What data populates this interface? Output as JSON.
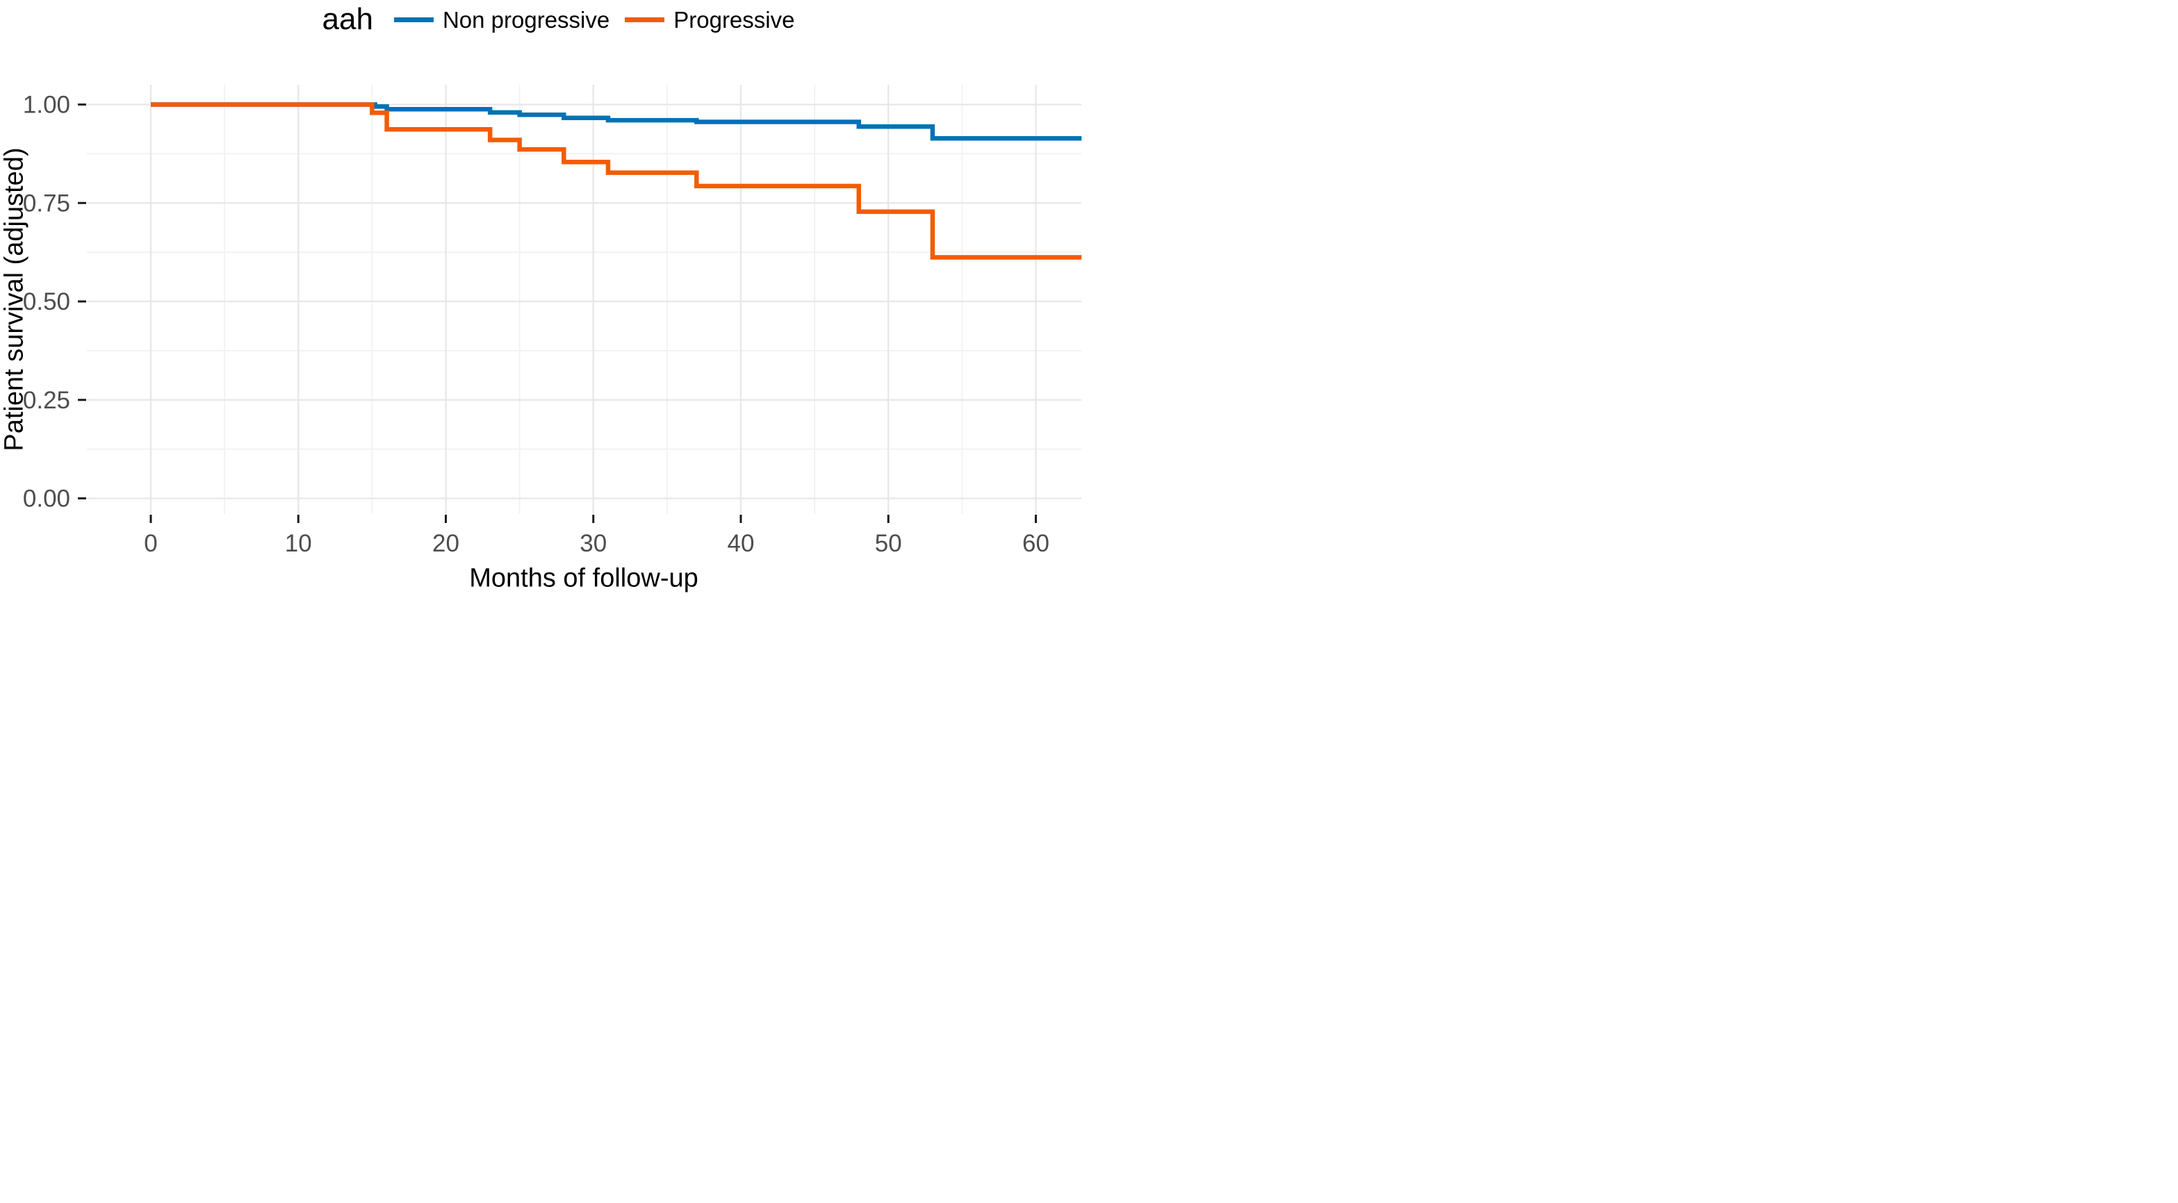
{
  "legend": {
    "title": "aah",
    "entries": [
      {
        "label": "Non progressive",
        "color": "#0072B5"
      },
      {
        "label": "Progressive",
        "color": "#F25C05"
      }
    ],
    "position": "top"
  },
  "axes": {
    "x_title": "Months of follow-up",
    "y_title": "Patient survival (adjusted)"
  },
  "chart_data": {
    "type": "line",
    "subtype": "step-after-kaplan-meier",
    "title": "",
    "xlabel": "Months of follow-up",
    "ylabel": "Patient survival (adjusted)",
    "legend_title": "aah",
    "legend_position": "top",
    "grid": true,
    "x_axis": {
      "ticks": [
        0,
        10,
        20,
        30,
        40,
        50,
        60
      ],
      "minor_ticks": [
        5,
        15,
        25,
        35,
        45,
        55
      ],
      "data_max": 63.1
    },
    "y_axis": {
      "ticks": [
        {
          "v": 0.0,
          "label": "0.00"
        },
        {
          "v": 0.25,
          "label": "0.25"
        },
        {
          "v": 0.5,
          "label": "0.50"
        },
        {
          "v": 0.75,
          "label": "0.75"
        },
        {
          "v": 1.0,
          "label": "1.00"
        }
      ],
      "minor_ticks": [
        0.125,
        0.375,
        0.625,
        0.875
      ],
      "range": [
        0,
        1
      ]
    },
    "series": [
      {
        "name": "Non progressive",
        "color": "#0072B5",
        "end_x": 63.1,
        "steps": [
          [
            0,
            1.0
          ],
          [
            15.2,
            0.995
          ],
          [
            16,
            0.988
          ],
          [
            23,
            0.98
          ],
          [
            25,
            0.974
          ],
          [
            28,
            0.966
          ],
          [
            31,
            0.96
          ],
          [
            37,
            0.956
          ],
          [
            48,
            0.944
          ],
          [
            53,
            0.914
          ]
        ]
      },
      {
        "name": "Progressive",
        "color": "#F25C05",
        "end_x": 63.1,
        "steps": [
          [
            0,
            1.0
          ],
          [
            15,
            0.979
          ],
          [
            16,
            0.937
          ],
          [
            23,
            0.91
          ],
          [
            25,
            0.886
          ],
          [
            28,
            0.854
          ],
          [
            31,
            0.827
          ],
          [
            37,
            0.793
          ],
          [
            48,
            0.728
          ],
          [
            53,
            0.612
          ]
        ]
      }
    ],
    "colors": {
      "grid_major": "#E7E7E7",
      "grid_minor": "#F1F1F1",
      "tick_mark": "#1a1a1a",
      "tick_label": "#4d4d4d",
      "axis_title": "#000000",
      "background": "#ffffff"
    }
  }
}
